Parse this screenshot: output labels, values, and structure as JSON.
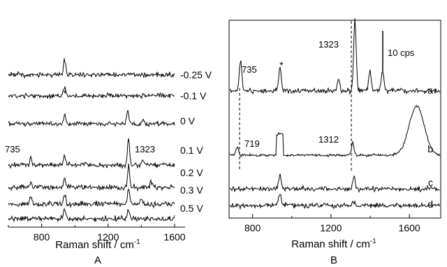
{
  "chart_data": [
    {
      "type": "line",
      "panel_label": "A",
      "xlabel": "Raman shift / cm",
      "xlabel_sup": "-1",
      "xlim": [
        600,
        1600
      ],
      "xticks": [
        800,
        1200,
        1600
      ],
      "y_axis": "offset stacked spectra, no scale",
      "series": [
        {
          "name": "-0.25 V",
          "peaks": [
            {
              "x": 938,
              "height": 22
            }
          ]
        },
        {
          "name": "-0.1 V",
          "peaks": [
            {
              "x": 938,
              "height": 14
            }
          ]
        },
        {
          "name": "0 V",
          "peaks": [
            {
              "x": 938,
              "height": 12
            },
            {
              "x": 1318,
              "height": 20
            },
            {
              "x": 1410,
              "height": 6
            }
          ]
        },
        {
          "name": "0.1 V",
          "peaks": [
            {
              "x": 735,
              "height": 10
            },
            {
              "x": 938,
              "height": 14
            },
            {
              "x": 1323,
              "height": 38
            },
            {
              "x": 1410,
              "height": 8
            }
          ]
        },
        {
          "name": "0.2 V",
          "peaks": [
            {
              "x": 735,
              "height": 8
            },
            {
              "x": 938,
              "height": 12
            },
            {
              "x": 1323,
              "height": 30
            },
            {
              "x": 1460,
              "height": 8
            }
          ]
        },
        {
          "name": "0.3 V",
          "peaks": [
            {
              "x": 735,
              "height": 12
            },
            {
              "x": 938,
              "height": 14
            },
            {
              "x": 1323,
              "height": 24
            },
            {
              "x": 1400,
              "height": 8
            }
          ]
        },
        {
          "name": "0.5 V",
          "peaks": [
            {
              "x": 938,
              "height": 12
            },
            {
              "x": 1323,
              "height": 14
            }
          ]
        }
      ],
      "annotations": [
        "*",
        "735",
        "1323"
      ]
    },
    {
      "type": "line",
      "panel_label": "B",
      "xlabel": "Raman shift / cm",
      "xlabel_sup": "-1",
      "xlim": [
        680,
        1760
      ],
      "xticks": [
        800,
        1200,
        1600
      ],
      "y_axis": "offset stacked spectra",
      "scale_bar": "10 cps",
      "series": [
        {
          "name": "a",
          "peaks": [
            {
              "x": 735,
              "height": 45
            },
            {
              "x": 938,
              "height": 35
            },
            {
              "x": 1240,
              "height": 16
            },
            {
              "x": 1323,
              "height": 102
            },
            {
              "x": 1400,
              "height": 28
            },
            {
              "x": 1465,
              "height": 30
            }
          ]
        },
        {
          "name": "b",
          "peaks": [
            {
              "x": 719,
              "height": 12
            },
            {
              "x": 1312,
              "height": 18
            },
            {
              "x": 1640,
              "height": 70
            }
          ]
        },
        {
          "name": "c",
          "peaks": [
            {
              "x": 938,
              "height": 20
            },
            {
              "x": 1318,
              "height": 18
            }
          ]
        },
        {
          "name": "d",
          "peaks": [
            {
              "x": 938,
              "height": 18
            },
            {
              "x": 1318,
              "height": 6
            }
          ]
        }
      ],
      "annotations": [
        "735",
        "*",
        "1323",
        "719",
        "1312"
      ]
    }
  ]
}
